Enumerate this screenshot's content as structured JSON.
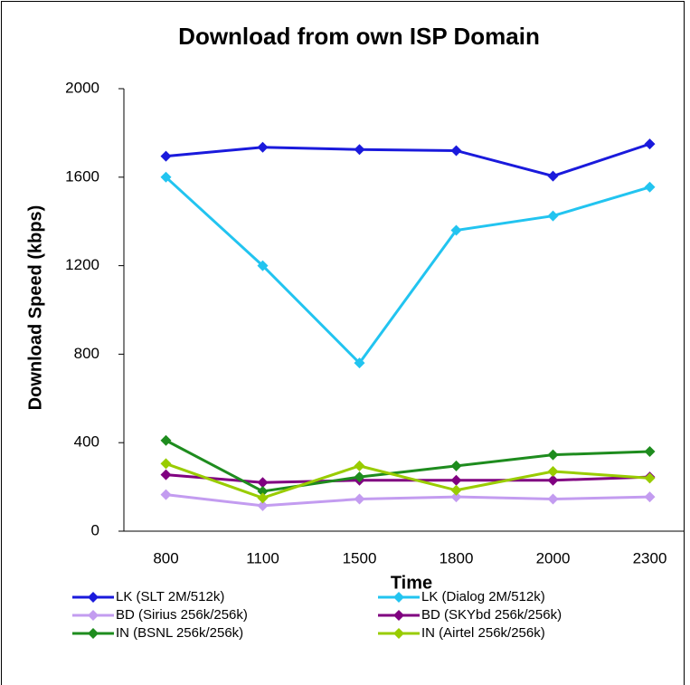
{
  "chart_data": {
    "type": "line",
    "title": "Download from own ISP Domain",
    "x_label": "Time",
    "y_label": "Download Speed (kbps)",
    "categories": [
      "800",
      "1100",
      "1500",
      "1800",
      "2000",
      "2300"
    ],
    "series": [
      {
        "name": "LK (SLT 2M/512k)",
        "color": "#1a1adc",
        "values": [
          1695,
          1735,
          1725,
          1720,
          1605,
          1750
        ]
      },
      {
        "name": "LK (Dialog 2M/512k)",
        "color": "#22c4f0",
        "values": [
          1600,
          1200,
          760,
          1360,
          1425,
          1555
        ]
      },
      {
        "name": "BD (Sirius 256k/256k)",
        "color": "#c39cf0",
        "values": [
          165,
          115,
          145,
          155,
          145,
          155
        ]
      },
      {
        "name": "BD (SKYbd 256k/256k)",
        "color": "#800080",
        "values": [
          255,
          220,
          230,
          230,
          230,
          245
        ]
      },
      {
        "name": "IN (BSNL 256k/256k)",
        "color": "#1e8c1e",
        "values": [
          410,
          180,
          245,
          295,
          345,
          360
        ]
      },
      {
        "name": "IN (Airtel 256k/256k)",
        "color": "#99cc00",
        "values": [
          305,
          150,
          295,
          185,
          270,
          240
        ]
      }
    ],
    "ylim": [
      0,
      2000
    ],
    "yticks": [
      0,
      400,
      800,
      1200,
      1600,
      2000
    ],
    "grid": false,
    "legend": "bottom"
  }
}
